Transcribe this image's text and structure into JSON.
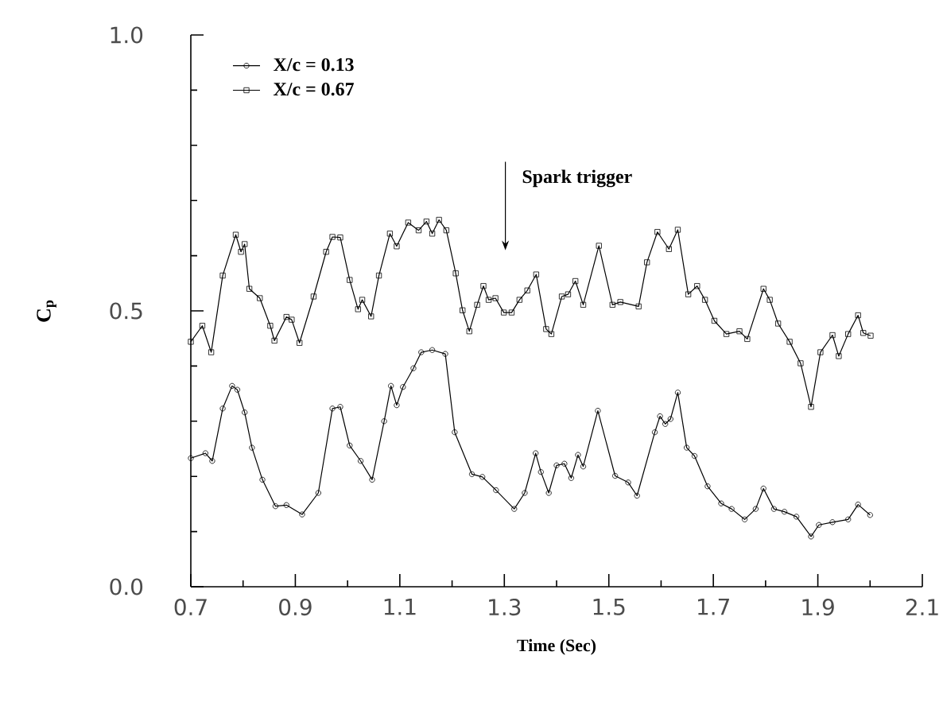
{
  "chart_data": {
    "type": "line",
    "xlabel": "Time (Sec)",
    "ylabel": "C$_{p}$",
    "xlim": [
      0.7,
      2.1
    ],
    "ylim": [
      0.0,
      1.0
    ],
    "xticks": [
      0.7,
      0.9,
      1.1,
      1.3,
      1.5,
      1.7,
      1.9,
      2.1
    ],
    "yticks": [
      {
        "value": 0.0,
        "label": "0.0"
      },
      {
        "value": 0.5,
        "label": "0.5"
      },
      {
        "value": 1.0,
        "label": "1.0"
      }
    ],
    "legend": "top left",
    "grid": false,
    "annotations": [
      "Spark trigger"
    ],
    "series": [
      {
        "name": "X/c = 0.13",
        "color": "#000000",
        "marker": "circle",
        "x": [
          0.7,
          0.728,
          0.741,
          0.761,
          0.779,
          0.789,
          0.803,
          0.817,
          0.837,
          0.862,
          0.883,
          0.913,
          0.944,
          0.971,
          0.986,
          1.004,
          1.025,
          1.047,
          1.07,
          1.083,
          1.094,
          1.106,
          1.126,
          1.141,
          1.162,
          1.187,
          1.205,
          1.238,
          1.258,
          1.284,
          1.319,
          1.339,
          1.36,
          1.37,
          1.385,
          1.4,
          1.415,
          1.428,
          1.441,
          1.451,
          1.479,
          1.512,
          1.537,
          1.554,
          1.588,
          1.598,
          1.608,
          1.618,
          1.632,
          1.649,
          1.664,
          1.689,
          1.715,
          1.735,
          1.76,
          1.781,
          1.796,
          1.816,
          1.836,
          1.859,
          1.887,
          1.902,
          1.928,
          1.958,
          1.977,
          2.0
        ],
        "values": [
          0.233,
          0.242,
          0.228,
          0.323,
          0.364,
          0.357,
          0.316,
          0.252,
          0.194,
          0.146,
          0.148,
          0.131,
          0.17,
          0.323,
          0.326,
          0.256,
          0.228,
          0.194,
          0.3,
          0.364,
          0.329,
          0.362,
          0.396,
          0.425,
          0.429,
          0.422,
          0.28,
          0.204,
          0.199,
          0.175,
          0.141,
          0.17,
          0.242,
          0.208,
          0.17,
          0.22,
          0.223,
          0.197,
          0.239,
          0.218,
          0.319,
          0.201,
          0.189,
          0.165,
          0.28,
          0.309,
          0.295,
          0.304,
          0.352,
          0.252,
          0.237,
          0.182,
          0.151,
          0.141,
          0.122,
          0.141,
          0.178,
          0.141,
          0.136,
          0.127,
          0.091,
          0.112,
          0.117,
          0.122,
          0.149,
          0.13
        ]
      },
      {
        "name": "X/c = 0.67",
        "color": "#000000",
        "marker": "square",
        "x": [
          0.7,
          0.722,
          0.739,
          0.761,
          0.786,
          0.796,
          0.803,
          0.812,
          0.832,
          0.852,
          0.86,
          0.883,
          0.893,
          0.908,
          0.935,
          0.959,
          0.971,
          0.986,
          1.004,
          1.02,
          1.028,
          1.045,
          1.06,
          1.081,
          1.094,
          1.116,
          1.136,
          1.151,
          1.162,
          1.175,
          1.189,
          1.207,
          1.22,
          1.233,
          1.248,
          1.26,
          1.27,
          1.283,
          1.299,
          1.314,
          1.329,
          1.344,
          1.361,
          1.38,
          1.39,
          1.41,
          1.422,
          1.436,
          1.451,
          1.481,
          1.507,
          1.522,
          1.557,
          1.573,
          1.593,
          1.615,
          1.632,
          1.652,
          1.669,
          1.684,
          1.702,
          1.725,
          1.75,
          1.765,
          1.796,
          1.808,
          1.824,
          1.846,
          1.867,
          1.887,
          1.905,
          1.928,
          1.94,
          1.958,
          1.977,
          1.987,
          2.001
        ],
        "values": [
          0.444,
          0.473,
          0.425,
          0.564,
          0.638,
          0.607,
          0.621,
          0.54,
          0.523,
          0.473,
          0.446,
          0.489,
          0.484,
          0.442,
          0.526,
          0.607,
          0.634,
          0.633,
          0.556,
          0.503,
          0.52,
          0.49,
          0.564,
          0.64,
          0.617,
          0.66,
          0.646,
          0.662,
          0.64,
          0.665,
          0.646,
          0.568,
          0.501,
          0.463,
          0.511,
          0.545,
          0.52,
          0.523,
          0.497,
          0.497,
          0.52,
          0.537,
          0.566,
          0.467,
          0.458,
          0.526,
          0.53,
          0.554,
          0.511,
          0.618,
          0.511,
          0.516,
          0.508,
          0.588,
          0.643,
          0.612,
          0.647,
          0.53,
          0.545,
          0.52,
          0.482,
          0.458,
          0.463,
          0.449,
          0.54,
          0.52,
          0.477,
          0.444,
          0.405,
          0.326,
          0.425,
          0.456,
          0.418,
          0.458,
          0.492,
          0.46,
          0.455
        ]
      }
    ]
  }
}
